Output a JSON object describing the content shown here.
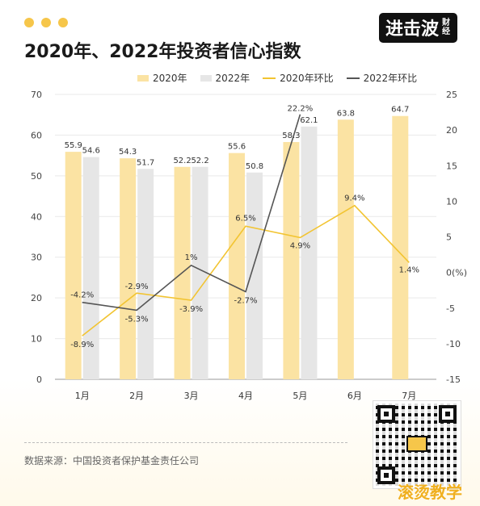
{
  "brand": {
    "logo_main": "进击波",
    "logo_sub": "财经"
  },
  "title": "2020年、2022年投资者信心指数",
  "legend": {
    "bar2020": "2020年",
    "bar2022": "2022年",
    "line2020": "2020年环比",
    "line2022": "2022年环比"
  },
  "colors": {
    "bar2020": "#fbe3a3",
    "bar2022": "#e6e6e6",
    "line2020": "#f2c431",
    "line2022": "#555555",
    "accent": "#f6c64a"
  },
  "source": "数据来源：中国投资者保护基金责任公司",
  "watermark": "滚烫教学",
  "chart_data": {
    "type": "bar",
    "categories": [
      "1月",
      "2月",
      "3月",
      "4月",
      "5月",
      "6月",
      "7月"
    ],
    "series": [
      {
        "name": "2020年",
        "type": "bar",
        "axis": "left",
        "values": [
          55.9,
          54.3,
          52.2,
          55.6,
          58.3,
          63.8,
          64.7
        ]
      },
      {
        "name": "2022年",
        "type": "bar",
        "axis": "left",
        "values": [
          54.6,
          51.7,
          52.2,
          50.8,
          62.1,
          null,
          null
        ]
      },
      {
        "name": "2020年环比",
        "type": "line",
        "axis": "right",
        "values": [
          -8.9,
          -2.9,
          -3.9,
          6.5,
          4.9,
          9.4,
          1.4
        ],
        "labels": [
          "-8.9%",
          "-2.9%",
          "-3.9%",
          "6.5%",
          "4.9%",
          "9.4%",
          "1.4%"
        ]
      },
      {
        "name": "2022年环比",
        "type": "line",
        "axis": "right",
        "values": [
          -4.2,
          -5.3,
          1,
          -2.7,
          22.2,
          null,
          null
        ],
        "labels": [
          "-4.2%",
          "-5.3%",
          "1%",
          "-2.7%",
          "22.2%",
          "",
          ""
        ]
      }
    ],
    "y_left": {
      "min": 0,
      "max": 70,
      "ticks": [
        "0",
        "10",
        "20",
        "30",
        "40",
        "50",
        "60",
        "70"
      ]
    },
    "y_right": {
      "min": -15,
      "max": 25,
      "ticks": [
        "-15",
        "-10",
        "-5",
        "0(%)",
        "5",
        "10",
        "15",
        "20",
        "25"
      ]
    },
    "grid": true,
    "legend_position": "top-right"
  }
}
